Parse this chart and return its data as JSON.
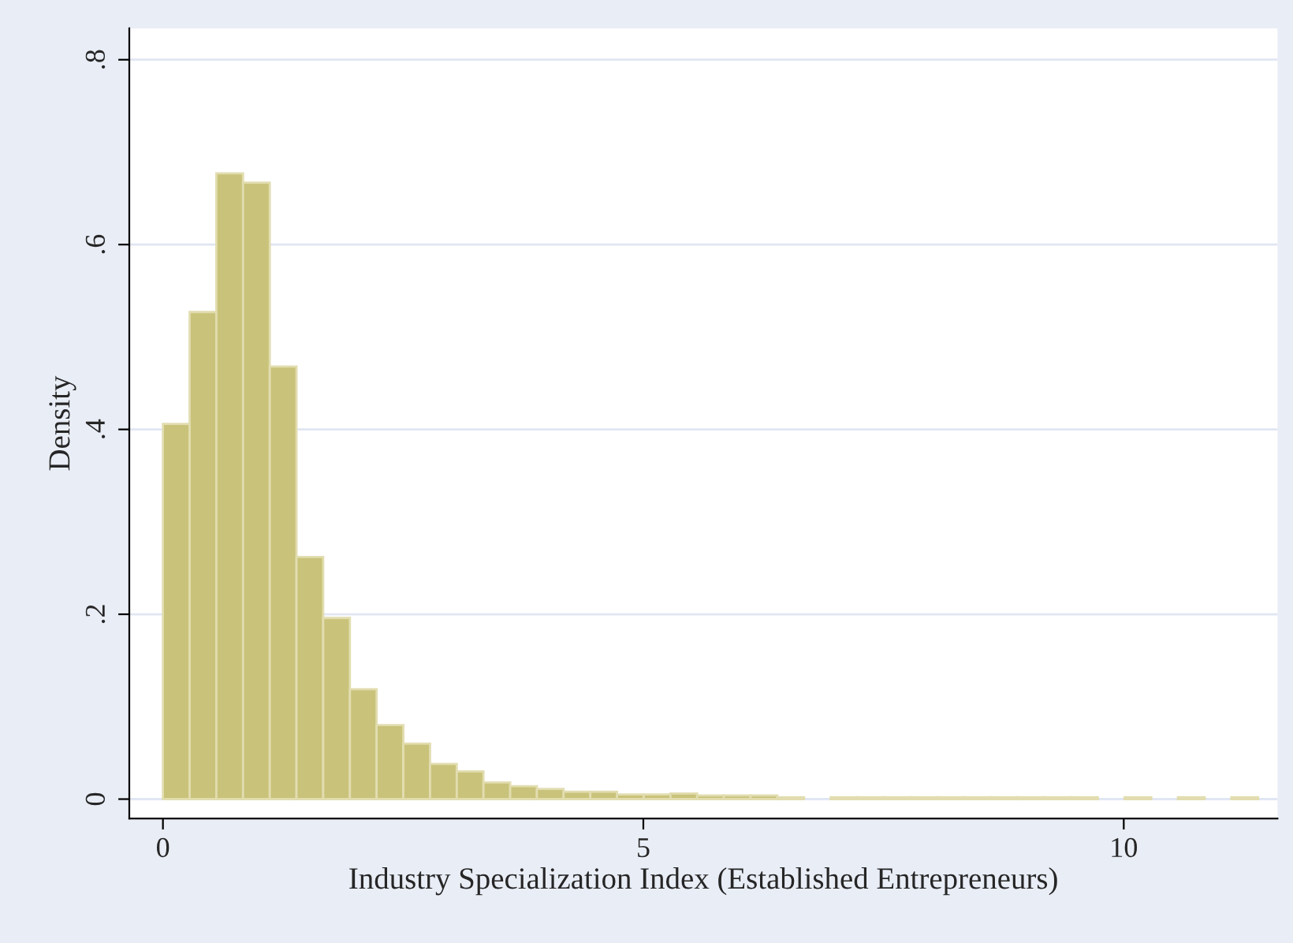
{
  "chart_data": {
    "type": "histogram",
    "xlabel": "Industry Specialization Index (Established Entrepreneurs)",
    "ylabel": "Density",
    "bins": [
      0,
      0.278,
      0.556,
      0.834,
      1.112,
      1.39,
      1.668,
      1.946,
      2.224,
      2.502,
      2.78,
      3.058,
      3.336,
      3.614,
      3.892,
      4.17,
      4.448,
      4.726,
      5.004,
      5.282,
      5.56,
      5.838,
      6.116,
      6.394,
      6.672,
      6.95,
      7.228,
      7.506,
      7.784,
      8.062,
      8.34,
      8.618,
      8.896,
      9.174,
      9.452,
      9.73,
      10.008,
      10.286,
      10.564,
      10.842,
      11.12,
      11.398
    ],
    "values": [
      0.406,
      0.527,
      0.677,
      0.667,
      0.468,
      0.262,
      0.196,
      0.119,
      0.08,
      0.06,
      0.038,
      0.03,
      0.018,
      0.014,
      0.011,
      0.008,
      0.008,
      0.005,
      0.005,
      0.006,
      0.004,
      0.004,
      0.004,
      0.002,
      0,
      0.002,
      0.002,
      0.002,
      0.002,
      0.002,
      0.002,
      0.002,
      0.002,
      0.002,
      0.002,
      0,
      0.002,
      0,
      0.002,
      0,
      0.002
    ],
    "color": "#c9c27a",
    "xlim": [
      -0.35,
      11.6
    ],
    "xticks": [
      0,
      5,
      10
    ],
    "ylim": [
      -0.021,
      0.834
    ],
    "yticks": [
      0,
      {
        "value": 0.2,
        "label": ".2"
      },
      {
        "value": 0.4,
        "label": ".4"
      },
      {
        "value": 0.6,
        "label": ".6"
      },
      {
        "value": 0.8,
        "label": ".8"
      }
    ],
    "grid": "y"
  }
}
